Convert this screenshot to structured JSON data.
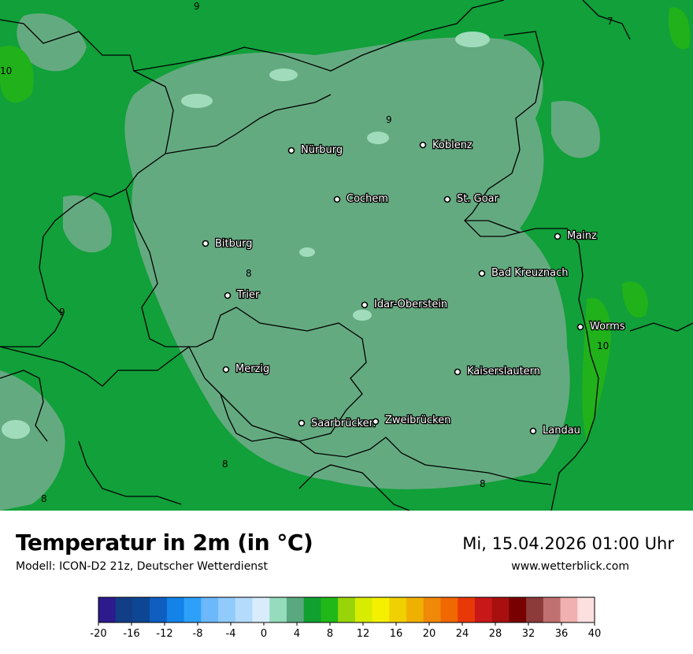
{
  "header": {
    "title": "Temperatur in 2m (in °C)",
    "model": "Modell: ICON-D2 21z, Deutscher Wetterdienst",
    "datetime": "Mi, 15.04.2026 01:00 Uhr",
    "website": "www.wetterblick.com"
  },
  "map": {
    "cities": [
      {
        "name": "Nürburg"
      },
      {
        "name": "Koblenz"
      },
      {
        "name": "Cochem"
      },
      {
        "name": "St. Goar"
      },
      {
        "name": "Bitburg"
      },
      {
        "name": "Mainz"
      },
      {
        "name": "Bad Kreuznach"
      },
      {
        "name": "Trier"
      },
      {
        "name": "Idar-Oberstein"
      },
      {
        "name": "Worms"
      },
      {
        "name": "Merzig"
      },
      {
        "name": "Kaiserslautern"
      },
      {
        "name": "Saarbrücken"
      },
      {
        "name": "Zweibrücken"
      },
      {
        "name": "Landau"
      }
    ],
    "isolines": [
      "9",
      "7",
      "10",
      "9",
      "8",
      "9",
      "10",
      "8",
      "8",
      "8"
    ],
    "colors": {
      "band_6_8": "#64aa80",
      "band_8_10": "#11a03a",
      "band_10_12": "#21b11b",
      "band_4_6": "#a0dcbc"
    }
  },
  "legend": {
    "ticks": [
      "-20",
      "-16",
      "-12",
      "-8",
      "-4",
      "0",
      "4",
      "8",
      "12",
      "16",
      "20",
      "24",
      "28",
      "32",
      "36",
      "40"
    ],
    "colors": [
      "#2d1a8c",
      "#123e86",
      "#0d4794",
      "#0e5fc0",
      "#1383e8",
      "#2da0fa",
      "#6cb8fb",
      "#91cbfb",
      "#b4dbfc",
      "#d8ecfd",
      "#94dcbc",
      "#5aa880",
      "#10a030",
      "#20b818",
      "#98d408",
      "#d8ec00",
      "#f4f000",
      "#f0d000",
      "#f0b000",
      "#f08808",
      "#f06800",
      "#e83808",
      "#c81818",
      "#a81010",
      "#780000",
      "#8c3a3a",
      "#c07070",
      "#f0b0b0",
      "#fce0e0"
    ]
  }
}
